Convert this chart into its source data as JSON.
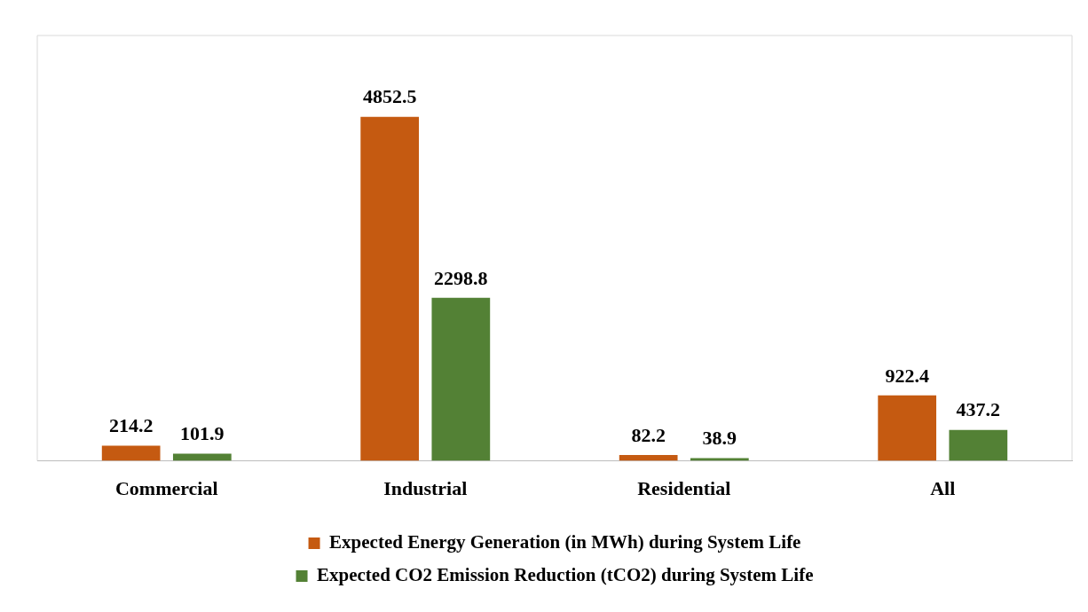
{
  "chart_data": {
    "type": "bar",
    "categories": [
      "Commercial",
      "Industrial",
      "Residential",
      "All"
    ],
    "series": [
      {
        "name": "Expected Energy Generation (in MWh) during System Life",
        "color": "#c55a11",
        "values": [
          214.2,
          4852.5,
          82.2,
          922.4
        ]
      },
      {
        "name": "Expected CO2 Emission Reduction (tCO2) during System Life",
        "color": "#538135",
        "values": [
          101.9,
          2298.8,
          38.9,
          437.2
        ]
      }
    ],
    "data_labels": true,
    "legend": "bottom",
    "grid": false,
    "tick_labels": "x"
  }
}
